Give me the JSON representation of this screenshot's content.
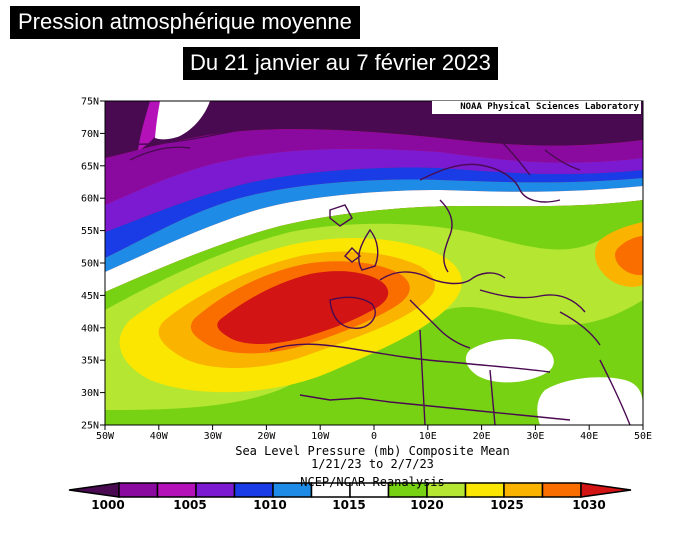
{
  "title": "Pression atmosphérique moyenne",
  "subtitle": "Du 21 janvier au 7 février 2023",
  "credit": "NOAA Physical Sciences Laboratory",
  "caption": {
    "line1": "Sea Level Pressure (mb) Composite Mean",
    "line2": "1/21/23  to 2/7/23",
    "line3": "NCEP/NCAR Reanalysis"
  },
  "map": {
    "lon_range": [
      -50,
      50
    ],
    "lat_range": [
      25,
      75
    ],
    "lon_ticks": [
      "50W",
      "40W",
      "30W",
      "20W",
      "10W",
      "0",
      "10E",
      "20E",
      "30E",
      "40E",
      "50E"
    ],
    "lat_ticks": [
      "75N",
      "70N",
      "65N",
      "60N",
      "55N",
      "50N",
      "45N",
      "40N",
      "35N",
      "30N",
      "25N"
    ]
  },
  "colorbar": {
    "unit": "mb",
    "labels": [
      "1000",
      "1005",
      "1010",
      "1015",
      "1020",
      "1025",
      "1030"
    ],
    "colors": [
      "#4a0a52",
      "#8a0aa0",
      "#b412b8",
      "#7c1ad2",
      "#1a3ce6",
      "#1e8ce6",
      "#ffffff",
      "#ffffff",
      "#78d214",
      "#b4e632",
      "#fae600",
      "#fab400",
      "#fa6e00",
      "#d21414"
    ]
  }
}
